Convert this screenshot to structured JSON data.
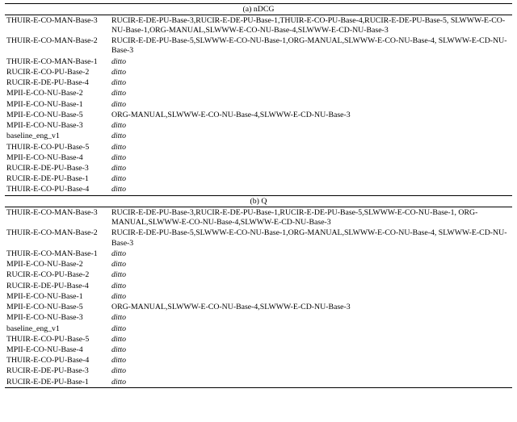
{
  "sections": [
    {
      "header": "(a) nDCG",
      "rows": [
        {
          "left": "THUIR-E-CO-MAN-Base-3",
          "right": "RUCIR-E-DE-PU-Base-3,RUCIR-E-DE-PU-Base-1,THUIR-E-CO-PU-Base-4,RUCIR-E-DE-PU-Base-5, SLWWW-E-CO-NU-Base-1,ORG-MANUAL,SLWWW-E-CO-NU-Base-4,SLWWW-E-CD-NU-Base-3",
          "ditto": false
        },
        {
          "left": "THUIR-E-CO-MAN-Base-2",
          "right": "RUCIR-E-DE-PU-Base-5,SLWWW-E-CO-NU-Base-1,ORG-MANUAL,SLWWW-E-CO-NU-Base-4, SLWWW-E-CD-NU-Base-3",
          "ditto": false
        },
        {
          "left": "THUIR-E-CO-MAN-Base-1",
          "right": "ditto",
          "ditto": true
        },
        {
          "left": "RUCIR-E-CO-PU-Base-2",
          "right": "ditto",
          "ditto": true
        },
        {
          "left": "RUCIR-E-DE-PU-Base-4",
          "right": "ditto",
          "ditto": true
        },
        {
          "left": "MPII-E-CO-NU-Base-2",
          "right": "ditto",
          "ditto": true
        },
        {
          "left": "MPII-E-CO-NU-Base-1",
          "right": "ditto",
          "ditto": true
        },
        {
          "left": "MPII-E-CO-NU-Base-5",
          "right": "ORG-MANUAL,SLWWW-E-CO-NU-Base-4,SLWWW-E-CD-NU-Base-3",
          "ditto": false
        },
        {
          "left": "MPII-E-CO-NU-Base-3",
          "right": "ditto",
          "ditto": true
        },
        {
          "left": "baseline_eng_v1",
          "right": "ditto",
          "ditto": true
        },
        {
          "left": "THUIR-E-CO-PU-Base-5",
          "right": "ditto",
          "ditto": true
        },
        {
          "left": "MPII-E-CO-NU-Base-4",
          "right": "ditto",
          "ditto": true
        },
        {
          "left": "RUCIR-E-DE-PU-Base-3",
          "right": "ditto",
          "ditto": true
        },
        {
          "left": "RUCIR-E-DE-PU-Base-1",
          "right": "ditto",
          "ditto": true
        },
        {
          "left": "THUIR-E-CO-PU-Base-4",
          "right": "ditto",
          "ditto": true
        }
      ]
    },
    {
      "header": "(b) Q",
      "rows": [
        {
          "left": "THUIR-E-CO-MAN-Base-3",
          "right": "RUCIR-E-DE-PU-Base-3,RUCIR-E-DE-PU-Base-1,RUCIR-E-DE-PU-Base-5,SLWWW-E-CO-NU-Base-1, ORG-MANUAL,SLWWW-E-CO-NU-Base-4,SLWWW-E-CD-NU-Base-3",
          "ditto": false
        },
        {
          "left": "THUIR-E-CO-MAN-Base-2",
          "right": "RUCIR-E-DE-PU-Base-5,SLWWW-E-CO-NU-Base-1,ORG-MANUAL,SLWWW-E-CO-NU-Base-4, SLWWW-E-CD-NU-Base-3",
          "ditto": false
        },
        {
          "left": "THUIR-E-CO-MAN-Base-1",
          "right": "ditto",
          "ditto": true
        },
        {
          "left": "MPII-E-CO-NU-Base-2",
          "right": "ditto",
          "ditto": true
        },
        {
          "left": "RUCIR-E-CO-PU-Base-2",
          "right": "ditto",
          "ditto": true
        },
        {
          "left": "RUCIR-E-DE-PU-Base-4",
          "right": "ditto",
          "ditto": true
        },
        {
          "left": "MPII-E-CO-NU-Base-1",
          "right": "ditto",
          "ditto": true
        },
        {
          "left": "MPII-E-CO-NU-Base-5",
          "right": "ORG-MANUAL,SLWWW-E-CO-NU-Base-4,SLWWW-E-CD-NU-Base-3",
          "ditto": false
        },
        {
          "left": "MPII-E-CO-NU-Base-3",
          "right": "ditto",
          "ditto": true
        },
        {
          "left": "baseline_eng_v1",
          "right": "ditto",
          "ditto": true
        },
        {
          "left": "THUIR-E-CO-PU-Base-5",
          "right": "ditto",
          "ditto": true
        },
        {
          "left": "MPII-E-CO-NU-Base-4",
          "right": "ditto",
          "ditto": true
        },
        {
          "left": "THUIR-E-CO-PU-Base-4",
          "right": "ditto",
          "ditto": true
        },
        {
          "left": "RUCIR-E-DE-PU-Base-3",
          "right": "ditto",
          "ditto": true
        },
        {
          "left": "RUCIR-E-DE-PU-Base-1",
          "right": "ditto",
          "ditto": true
        }
      ]
    }
  ]
}
